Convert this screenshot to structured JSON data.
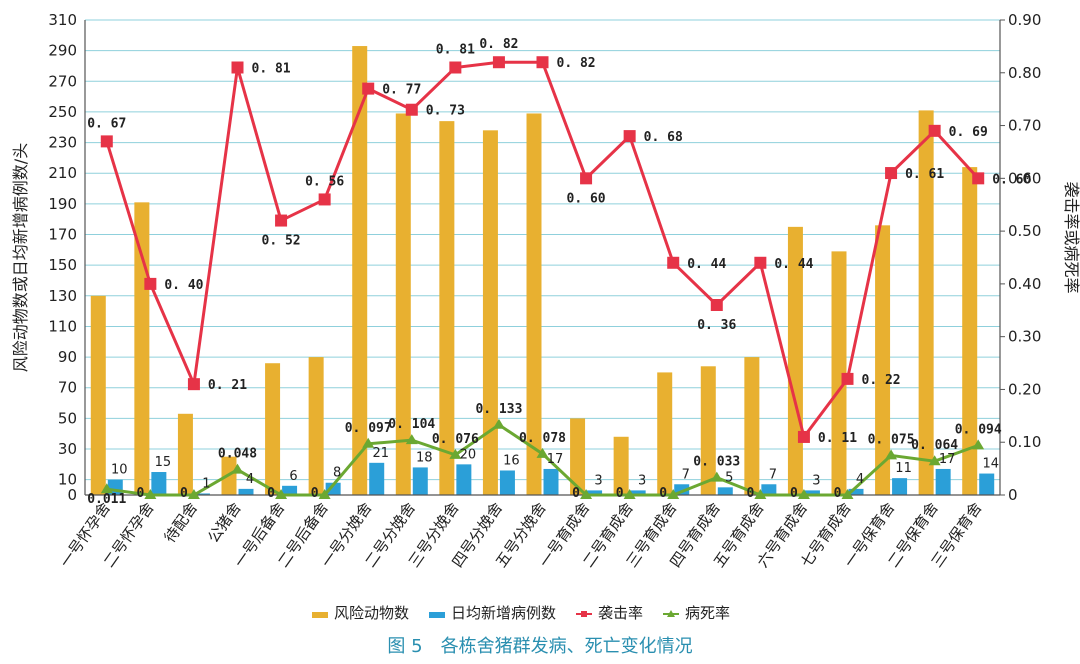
{
  "chart_data": {
    "type": "bar+line",
    "title": "",
    "caption": "图 5　各栋舍猪群发病、死亡变化情况",
    "ylabel_left": "风险动物数或日均新增病例数/头",
    "ylabel_right": "袭击率或病死率",
    "ylim_left": [
      0,
      310
    ],
    "yticks_left": [
      "0",
      "10",
      "30",
      "50",
      "70",
      "90",
      "110",
      "130",
      "150",
      "170",
      "190",
      "210",
      "230",
      "250",
      "270",
      "290",
      "310"
    ],
    "ylim_right": [
      0,
      0.9
    ],
    "yticks_right": [
      "0",
      "0.10",
      "0.20",
      "0.30",
      "0.40",
      "0.50",
      "0.60",
      "0.70",
      "0.80",
      "0.90"
    ],
    "grid": true,
    "legend_position": "bottom",
    "categories": [
      "一号怀孕舍",
      "二号怀孕舍",
      "待配舍",
      "公猪舍",
      "一号后备舍",
      "二号后备舍",
      "一号分娩舍",
      "二号分娩舍",
      "三号分娩舍",
      "四号分娩舍",
      "五号分娩舍",
      "一号育成舍",
      "二号育成舍",
      "三号育成舍",
      "四号育成舍",
      "五号育成舍",
      "六号育成舍",
      "七号育成舍",
      "一号保育舍",
      "二号保育舍",
      "三号保育舍"
    ],
    "series": [
      {
        "name": "风险动物数",
        "kind": "bar",
        "axis": "left",
        "color": "#e8b030",
        "values": [
          130,
          191,
          53,
          25,
          86,
          90,
          293,
          249,
          244,
          238,
          249,
          50,
          38,
          80,
          84,
          90,
          175,
          159,
          176,
          251,
          214
        ]
      },
      {
        "name": "日均新增病例数",
        "kind": "bar",
        "axis": "left",
        "color": "#2b9fd8",
        "values": [
          10,
          15,
          1,
          4,
          6,
          8,
          21,
          18,
          20,
          16,
          17,
          3,
          3,
          7,
          5,
          7,
          3,
          4,
          11,
          17,
          14
        ],
        "labels": [
          "10",
          "15",
          "1",
          "4",
          "6",
          "8",
          "21",
          "18",
          "20",
          "16",
          "17",
          "3",
          "3",
          "7",
          "5",
          "7",
          "3",
          "4",
          "11",
          "17",
          "14"
        ]
      },
      {
        "name": "袭击率",
        "kind": "line",
        "axis": "right",
        "color": "#e63347",
        "values": [
          0.67,
          0.4,
          0.21,
          0.81,
          0.52,
          0.56,
          0.77,
          0.73,
          0.81,
          0.82,
          0.82,
          0.6,
          0.68,
          0.44,
          0.36,
          0.44,
          0.11,
          0.22,
          0.61,
          0.69,
          0.6
        ],
        "labels": [
          "0. 67",
          "0. 40",
          "0. 21",
          "0. 81",
          "0. 52",
          "0. 56",
          "0. 77",
          "0. 73",
          "0. 81",
          "0. 82",
          "0. 82",
          "0. 60",
          "0. 68",
          "0. 44",
          "0. 36",
          "0. 44",
          "0. 11",
          "0. 22",
          "0. 61",
          "0. 69",
          "0. 60"
        ]
      },
      {
        "name": "病死率",
        "kind": "line",
        "axis": "right",
        "color": "#6ba832",
        "values": [
          0.011,
          0,
          0,
          0.048,
          0,
          0,
          0.097,
          0.104,
          0.076,
          0.133,
          0.078,
          0,
          0,
          0,
          0.033,
          0,
          0,
          0,
          0.075,
          0.064,
          0.094
        ],
        "labels": [
          "0.011",
          "0",
          "0",
          "0.048",
          "0",
          "0",
          "0. 097",
          "0. 104",
          "0. 076",
          "0. 133",
          "0. 078",
          "0",
          "0",
          "0",
          "0. 033",
          "0",
          "0",
          "0",
          "0. 075",
          "0. 064",
          "0. 094"
        ]
      }
    ]
  }
}
